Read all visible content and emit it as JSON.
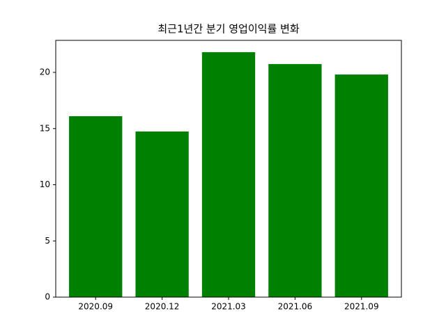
{
  "chart_data": {
    "type": "bar",
    "title": "최근1년간 분기 영업이익률 변화",
    "categories": [
      "2020.09",
      "2020.12",
      "2021.03",
      "2021.06",
      "2021.09"
    ],
    "values": [
      16.1,
      14.74,
      21.8,
      20.74,
      19.81
    ],
    "color": "#008000",
    "ylim": [
      0,
      22.85
    ],
    "yticks": [
      0,
      5,
      10,
      15,
      20
    ],
    "grid": false
  }
}
